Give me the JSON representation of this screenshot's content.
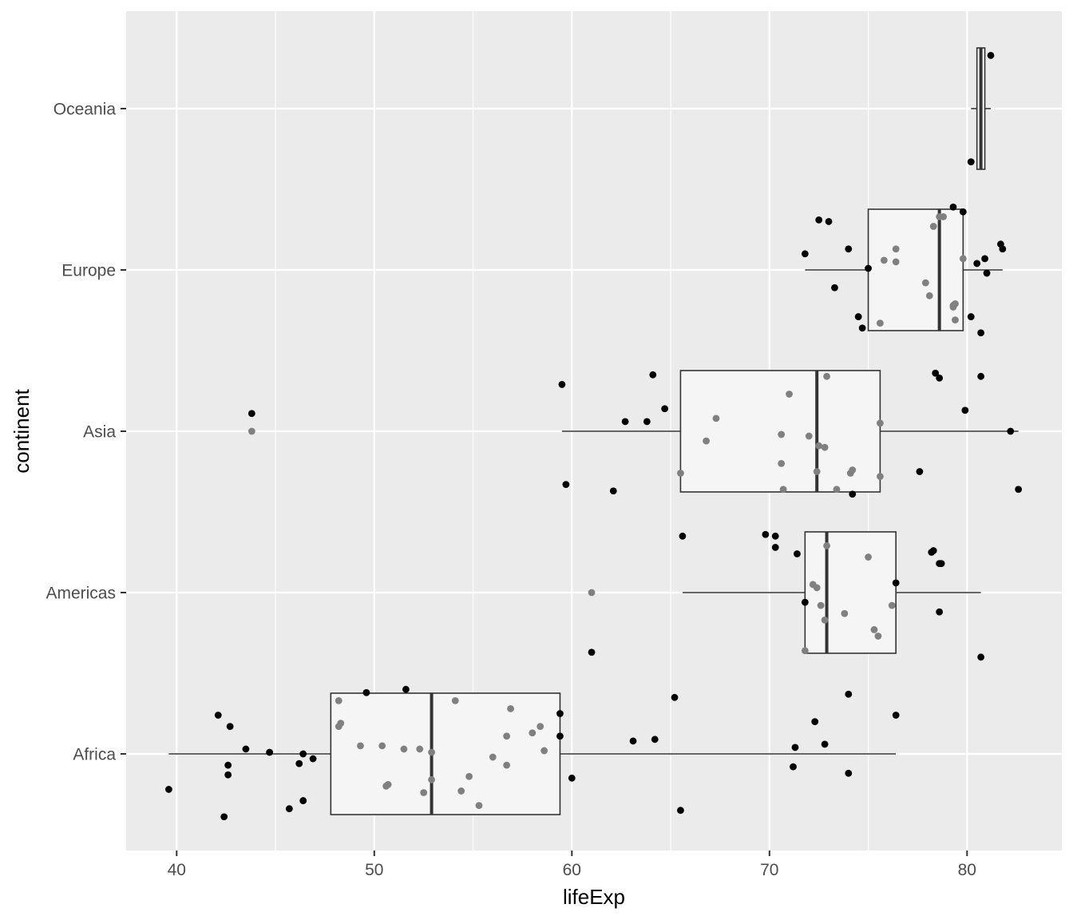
{
  "chart_data": {
    "type": "boxplot",
    "orientation": "horizontal",
    "xlabel": "lifeExp",
    "ylabel": "continent",
    "xlim": [
      37.4,
      85
    ],
    "x_ticks": [
      40,
      50,
      60,
      70,
      80
    ],
    "categories": [
      "Africa",
      "Americas",
      "Asia",
      "Europe",
      "Oceania"
    ],
    "grid": true,
    "legend": "none",
    "colors": {
      "panel": "#ebebeb",
      "grid": "#ffffff",
      "box_fill": "#f5f5f5",
      "box_line": "#333333",
      "point": "#000000",
      "point_overlay": "#808080"
    },
    "boxes": [
      {
        "category": "Africa",
        "whisker_low": 39.6,
        "q1": 47.8,
        "median": 52.9,
        "q3": 59.4,
        "whisker_high": 76.4
      },
      {
        "category": "Americas",
        "whisker_low": 65.6,
        "q1": 71.8,
        "median": 72.9,
        "q3": 76.4,
        "whisker_high": 80.7
      },
      {
        "category": "Asia",
        "whisker_low": 59.5,
        "q1": 65.5,
        "median": 72.4,
        "q3": 75.6,
        "whisker_high": 82.6
      },
      {
        "category": "Europe",
        "whisker_low": 71.8,
        "q1": 75.0,
        "median": 78.6,
        "q3": 79.8,
        "whisker_high": 81.8
      },
      {
        "category": "Oceania",
        "whisker_low": 80.2,
        "q1": 80.5,
        "median": 80.7,
        "q3": 80.9,
        "whisker_high": 81.2
      }
    ],
    "points": [
      {
        "category": "Africa",
        "layer": "black",
        "x": 39.6,
        "y": -0.22
      },
      {
        "category": "Africa",
        "layer": "black",
        "x": 42.1,
        "y": 0.24
      },
      {
        "category": "Africa",
        "layer": "black",
        "x": 42.4,
        "y": -0.39
      },
      {
        "category": "Africa",
        "layer": "black",
        "x": 42.6,
        "y": -0.07
      },
      {
        "category": "Africa",
        "layer": "black",
        "x": 42.6,
        "y": -0.13
      },
      {
        "category": "Africa",
        "layer": "black",
        "x": 42.7,
        "y": 0.17
      },
      {
        "category": "Africa",
        "layer": "black",
        "x": 43.5,
        "y": 0.03
      },
      {
        "category": "Africa",
        "layer": "black",
        "x": 44.7,
        "y": 0.01
      },
      {
        "category": "Africa",
        "layer": "black",
        "x": 45.7,
        "y": -0.34
      },
      {
        "category": "Africa",
        "layer": "black",
        "x": 46.2,
        "y": -0.06
      },
      {
        "category": "Africa",
        "layer": "black",
        "x": 46.4,
        "y": 0.0
      },
      {
        "category": "Africa",
        "layer": "black",
        "x": 46.4,
        "y": -0.29
      },
      {
        "category": "Africa",
        "layer": "black",
        "x": 46.9,
        "y": -0.03
      },
      {
        "category": "Africa",
        "layer": "black",
        "x": 49.6,
        "y": 0.38
      },
      {
        "category": "Africa",
        "layer": "black",
        "x": 51.6,
        "y": 0.4
      },
      {
        "category": "Africa",
        "layer": "black",
        "x": 59.4,
        "y": 0.25
      },
      {
        "category": "Africa",
        "layer": "black",
        "x": 59.4,
        "y": 0.11
      },
      {
        "category": "Africa",
        "layer": "black",
        "x": 60.0,
        "y": -0.15
      },
      {
        "category": "Africa",
        "layer": "black",
        "x": 63.1,
        "y": 0.08
      },
      {
        "category": "Africa",
        "layer": "black",
        "x": 64.2,
        "y": 0.09
      },
      {
        "category": "Africa",
        "layer": "black",
        "x": 65.2,
        "y": 0.35
      },
      {
        "category": "Africa",
        "layer": "black",
        "x": 65.5,
        "y": -0.35
      },
      {
        "category": "Africa",
        "layer": "black",
        "x": 71.2,
        "y": -0.08
      },
      {
        "category": "Africa",
        "layer": "black",
        "x": 71.3,
        "y": 0.04
      },
      {
        "category": "Africa",
        "layer": "black",
        "x": 72.3,
        "y": 0.2
      },
      {
        "category": "Africa",
        "layer": "black",
        "x": 72.8,
        "y": 0.06
      },
      {
        "category": "Africa",
        "layer": "black",
        "x": 74.0,
        "y": 0.37
      },
      {
        "category": "Africa",
        "layer": "black",
        "x": 74.0,
        "y": -0.12
      },
      {
        "category": "Africa",
        "layer": "black",
        "x": 76.4,
        "y": 0.24
      },
      {
        "category": "Africa",
        "layer": "grey",
        "x": 48.2,
        "y": 0.33
      },
      {
        "category": "Africa",
        "layer": "grey",
        "x": 48.2,
        "y": 0.17
      },
      {
        "category": "Africa",
        "layer": "grey",
        "x": 48.3,
        "y": 0.19
      },
      {
        "category": "Africa",
        "layer": "grey",
        "x": 49.3,
        "y": 0.05
      },
      {
        "category": "Africa",
        "layer": "grey",
        "x": 50.4,
        "y": 0.05
      },
      {
        "category": "Africa",
        "layer": "grey",
        "x": 50.6,
        "y": -0.2
      },
      {
        "category": "Africa",
        "layer": "grey",
        "x": 50.7,
        "y": -0.19
      },
      {
        "category": "Africa",
        "layer": "grey",
        "x": 51.5,
        "y": 0.03
      },
      {
        "category": "Africa",
        "layer": "grey",
        "x": 52.3,
        "y": 0.03
      },
      {
        "category": "Africa",
        "layer": "grey",
        "x": 52.5,
        "y": -0.24
      },
      {
        "category": "Africa",
        "layer": "grey",
        "x": 52.9,
        "y": 0.01
      },
      {
        "category": "Africa",
        "layer": "grey",
        "x": 52.9,
        "y": -0.16
      },
      {
        "category": "Africa",
        "layer": "grey",
        "x": 54.1,
        "y": 0.33
      },
      {
        "category": "Africa",
        "layer": "grey",
        "x": 54.4,
        "y": -0.23
      },
      {
        "category": "Africa",
        "layer": "grey",
        "x": 54.8,
        "y": -0.14
      },
      {
        "category": "Africa",
        "layer": "grey",
        "x": 55.3,
        "y": -0.32
      },
      {
        "category": "Africa",
        "layer": "grey",
        "x": 56.0,
        "y": -0.02
      },
      {
        "category": "Africa",
        "layer": "grey",
        "x": 56.7,
        "y": 0.11
      },
      {
        "category": "Africa",
        "layer": "grey",
        "x": 56.7,
        "y": -0.07
      },
      {
        "category": "Africa",
        "layer": "grey",
        "x": 56.9,
        "y": 0.28
      },
      {
        "category": "Africa",
        "layer": "grey",
        "x": 58.0,
        "y": 0.13
      },
      {
        "category": "Africa",
        "layer": "grey",
        "x": 58.4,
        "y": 0.17
      },
      {
        "category": "Africa",
        "layer": "grey",
        "x": 58.6,
        "y": 0.02
      },
      {
        "category": "Americas",
        "layer": "black",
        "x": 65.6,
        "y": 0.35
      },
      {
        "category": "Americas",
        "layer": "black",
        "x": 69.8,
        "y": 0.36
      },
      {
        "category": "Americas",
        "layer": "black",
        "x": 70.3,
        "y": 0.35
      },
      {
        "category": "Americas",
        "layer": "black",
        "x": 70.3,
        "y": 0.28
      },
      {
        "category": "Americas",
        "layer": "black",
        "x": 71.4,
        "y": 0.24
      },
      {
        "category": "Americas",
        "layer": "black",
        "x": 71.8,
        "y": -0.06
      },
      {
        "category": "Americas",
        "layer": "black",
        "x": 61.0,
        "y": -0.37
      },
      {
        "category": "Americas",
        "layer": "black",
        "x": 76.4,
        "y": 0.06
      },
      {
        "category": "Americas",
        "layer": "black",
        "x": 78.2,
        "y": 0.25
      },
      {
        "category": "Americas",
        "layer": "black",
        "x": 78.3,
        "y": 0.26
      },
      {
        "category": "Americas",
        "layer": "black",
        "x": 78.6,
        "y": 0.18
      },
      {
        "category": "Americas",
        "layer": "black",
        "x": 78.7,
        "y": 0.18
      },
      {
        "category": "Americas",
        "layer": "black",
        "x": 78.6,
        "y": -0.12
      },
      {
        "category": "Americas",
        "layer": "black",
        "x": 80.7,
        "y": -0.4
      },
      {
        "category": "Americas",
        "layer": "grey",
        "x": 61.0,
        "y": 0.0
      },
      {
        "category": "Americas",
        "layer": "grey",
        "x": 71.8,
        "y": -0.36
      },
      {
        "category": "Americas",
        "layer": "grey",
        "x": 72.2,
        "y": 0.05
      },
      {
        "category": "Americas",
        "layer": "grey",
        "x": 72.4,
        "y": 0.03
      },
      {
        "category": "Americas",
        "layer": "grey",
        "x": 72.6,
        "y": -0.08
      },
      {
        "category": "Americas",
        "layer": "grey",
        "x": 72.9,
        "y": 0.29
      },
      {
        "category": "Americas",
        "layer": "grey",
        "x": 72.8,
        "y": -0.17
      },
      {
        "category": "Americas",
        "layer": "grey",
        "x": 73.8,
        "y": -0.13
      },
      {
        "category": "Americas",
        "layer": "grey",
        "x": 75.0,
        "y": 0.22
      },
      {
        "category": "Americas",
        "layer": "grey",
        "x": 75.3,
        "y": -0.23
      },
      {
        "category": "Americas",
        "layer": "grey",
        "x": 75.5,
        "y": -0.27
      },
      {
        "category": "Americas",
        "layer": "grey",
        "x": 76.2,
        "y": -0.08
      },
      {
        "category": "Asia",
        "layer": "black",
        "x": 43.8,
        "y": 0.11
      },
      {
        "category": "Asia",
        "layer": "black",
        "x": 59.5,
        "y": 0.29
      },
      {
        "category": "Asia",
        "layer": "black",
        "x": 59.7,
        "y": -0.33
      },
      {
        "category": "Asia",
        "layer": "black",
        "x": 62.1,
        "y": -0.37
      },
      {
        "category": "Asia",
        "layer": "black",
        "x": 62.7,
        "y": 0.06
      },
      {
        "category": "Asia",
        "layer": "black",
        "x": 63.8,
        "y": 0.06
      },
      {
        "category": "Asia",
        "layer": "black",
        "x": 64.1,
        "y": 0.35
      },
      {
        "category": "Asia",
        "layer": "black",
        "x": 64.7,
        "y": 0.14
      },
      {
        "category": "Asia",
        "layer": "black",
        "x": 74.2,
        "y": -0.39
      },
      {
        "category": "Asia",
        "layer": "black",
        "x": 77.6,
        "y": -0.25
      },
      {
        "category": "Asia",
        "layer": "black",
        "x": 78.4,
        "y": 0.36
      },
      {
        "category": "Asia",
        "layer": "black",
        "x": 78.6,
        "y": 0.33
      },
      {
        "category": "Asia",
        "layer": "black",
        "x": 79.9,
        "y": 0.13
      },
      {
        "category": "Asia",
        "layer": "black",
        "x": 80.7,
        "y": 0.34
      },
      {
        "category": "Asia",
        "layer": "black",
        "x": 82.2,
        "y": 0.0
      },
      {
        "category": "Asia",
        "layer": "black",
        "x": 82.6,
        "y": -0.36
      },
      {
        "category": "Asia",
        "layer": "grey",
        "x": 43.8,
        "y": 0.0
      },
      {
        "category": "Asia",
        "layer": "grey",
        "x": 65.5,
        "y": -0.26
      },
      {
        "category": "Asia",
        "layer": "grey",
        "x": 66.8,
        "y": -0.06
      },
      {
        "category": "Asia",
        "layer": "grey",
        "x": 67.3,
        "y": 0.08
      },
      {
        "category": "Asia",
        "layer": "grey",
        "x": 70.6,
        "y": -0.02
      },
      {
        "category": "Asia",
        "layer": "grey",
        "x": 70.7,
        "y": -0.36
      },
      {
        "category": "Asia",
        "layer": "grey",
        "x": 70.6,
        "y": -0.2
      },
      {
        "category": "Asia",
        "layer": "grey",
        "x": 71.0,
        "y": 0.23
      },
      {
        "category": "Asia",
        "layer": "grey",
        "x": 72.0,
        "y": -0.03
      },
      {
        "category": "Asia",
        "layer": "grey",
        "x": 72.4,
        "y": -0.25
      },
      {
        "category": "Asia",
        "layer": "grey",
        "x": 72.5,
        "y": -0.09
      },
      {
        "category": "Asia",
        "layer": "grey",
        "x": 72.8,
        "y": -0.1
      },
      {
        "category": "Asia",
        "layer": "grey",
        "x": 72.9,
        "y": 0.34
      },
      {
        "category": "Asia",
        "layer": "grey",
        "x": 73.4,
        "y": -0.36
      },
      {
        "category": "Asia",
        "layer": "grey",
        "x": 74.2,
        "y": -0.24
      },
      {
        "category": "Asia",
        "layer": "grey",
        "x": 74.1,
        "y": -0.26
      },
      {
        "category": "Asia",
        "layer": "grey",
        "x": 75.6,
        "y": 0.05
      },
      {
        "category": "Asia",
        "layer": "grey",
        "x": 75.6,
        "y": -0.28
      },
      {
        "category": "Europe",
        "layer": "black",
        "x": 71.8,
        "y": 0.1
      },
      {
        "category": "Europe",
        "layer": "black",
        "x": 72.5,
        "y": 0.31
      },
      {
        "category": "Europe",
        "layer": "black",
        "x": 73.0,
        "y": 0.3
      },
      {
        "category": "Europe",
        "layer": "black",
        "x": 73.3,
        "y": -0.11
      },
      {
        "category": "Europe",
        "layer": "black",
        "x": 74.0,
        "y": 0.13
      },
      {
        "category": "Europe",
        "layer": "black",
        "x": 74.5,
        "y": -0.29
      },
      {
        "category": "Europe",
        "layer": "black",
        "x": 74.7,
        "y": -0.36
      },
      {
        "category": "Europe",
        "layer": "black",
        "x": 75.0,
        "y": 0.01
      },
      {
        "category": "Europe",
        "layer": "black",
        "x": 79.3,
        "y": 0.39
      },
      {
        "category": "Europe",
        "layer": "black",
        "x": 79.8,
        "y": 0.36
      },
      {
        "category": "Europe",
        "layer": "black",
        "x": 80.2,
        "y": -0.29
      },
      {
        "category": "Europe",
        "layer": "black",
        "x": 80.5,
        "y": 0.04
      },
      {
        "category": "Europe",
        "layer": "black",
        "x": 80.7,
        "y": -0.39
      },
      {
        "category": "Europe",
        "layer": "black",
        "x": 80.9,
        "y": 0.07
      },
      {
        "category": "Europe",
        "layer": "black",
        "x": 81.0,
        "y": -0.02
      },
      {
        "category": "Europe",
        "layer": "black",
        "x": 81.7,
        "y": 0.16
      },
      {
        "category": "Europe",
        "layer": "black",
        "x": 81.8,
        "y": 0.13
      },
      {
        "category": "Europe",
        "layer": "grey",
        "x": 75.6,
        "y": -0.33
      },
      {
        "category": "Europe",
        "layer": "grey",
        "x": 75.8,
        "y": 0.06
      },
      {
        "category": "Europe",
        "layer": "grey",
        "x": 76.4,
        "y": 0.13
      },
      {
        "category": "Europe",
        "layer": "grey",
        "x": 76.4,
        "y": 0.05
      },
      {
        "category": "Europe",
        "layer": "grey",
        "x": 77.9,
        "y": -0.08
      },
      {
        "category": "Europe",
        "layer": "grey",
        "x": 78.1,
        "y": -0.16
      },
      {
        "category": "Europe",
        "layer": "grey",
        "x": 78.3,
        "y": 0.27
      },
      {
        "category": "Europe",
        "layer": "grey",
        "x": 78.6,
        "y": 0.33
      },
      {
        "category": "Europe",
        "layer": "grey",
        "x": 78.8,
        "y": 0.33
      },
      {
        "category": "Europe",
        "layer": "grey",
        "x": 79.3,
        "y": -0.22
      },
      {
        "category": "Europe",
        "layer": "grey",
        "x": 79.4,
        "y": -0.21
      },
      {
        "category": "Europe",
        "layer": "grey",
        "x": 79.3,
        "y": -0.23
      },
      {
        "category": "Europe",
        "layer": "grey",
        "x": 79.4,
        "y": -0.31
      },
      {
        "category": "Europe",
        "layer": "grey",
        "x": 79.8,
        "y": 0.07
      },
      {
        "category": "Oceania",
        "layer": "black",
        "x": 81.2,
        "y": 0.33
      },
      {
        "category": "Oceania",
        "layer": "black",
        "x": 80.2,
        "y": -0.33
      }
    ]
  }
}
